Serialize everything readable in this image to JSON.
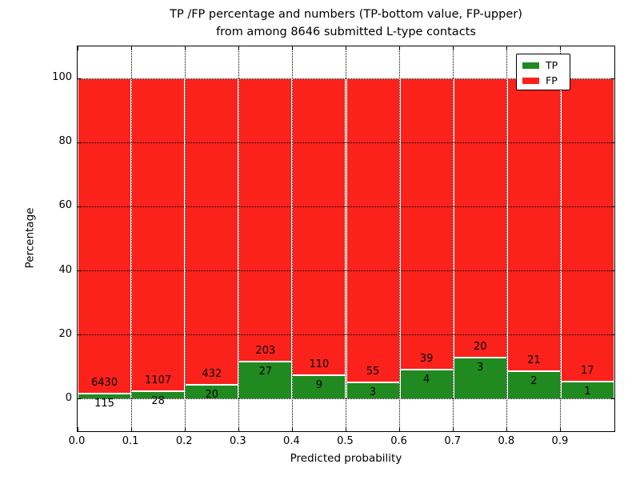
{
  "chart_data": {
    "type": "bar",
    "stacked": true,
    "title_lines": [
      "TP /FP percentage and numbers (TP-bottom value, FP-upper)",
      "from among 8646 submitted L-type contacts"
    ],
    "total_submitted_contacts": 8646,
    "xlabel": "Predicted probability",
    "ylabel": "Percentage",
    "xlim": [
      0.0,
      1.0
    ],
    "ylim": [
      -10,
      110
    ],
    "grid": true,
    "x_tick_values": [
      0.0,
      0.1,
      0.2,
      0.3,
      0.4,
      0.5,
      0.6,
      0.7,
      0.8,
      0.9
    ],
    "x_tick_labels": [
      "0.0",
      "0.1",
      "0.2",
      "0.3",
      "0.4",
      "0.5",
      "0.6",
      "0.7",
      "0.8",
      "0.9"
    ],
    "y_tick_values": [
      0,
      20,
      40,
      60,
      80,
      100
    ],
    "y_tick_labels": [
      "0",
      "20",
      "40",
      "60",
      "80",
      "100"
    ],
    "categories": [
      "0.0-0.1",
      "0.1-0.2",
      "0.2-0.3",
      "0.3-0.4",
      "0.4-0.5",
      "0.5-0.6",
      "0.6-0.7",
      "0.7-0.8",
      "0.8-0.9",
      "0.9-1.0"
    ],
    "bins": [
      {
        "range": "0.0-0.1",
        "tp": 115,
        "fp": 6430
      },
      {
        "range": "0.1-0.2",
        "tp": 28,
        "fp": 1107
      },
      {
        "range": "0.2-0.3",
        "tp": 20,
        "fp": 432
      },
      {
        "range": "0.3-0.4",
        "tp": 27,
        "fp": 203
      },
      {
        "range": "0.4-0.5",
        "tp": 9,
        "fp": 110
      },
      {
        "range": "0.5-0.6",
        "tp": 3,
        "fp": 55
      },
      {
        "range": "0.6-0.7",
        "tp": 4,
        "fp": 39
      },
      {
        "range": "0.7-0.8",
        "tp": 3,
        "fp": 20
      },
      {
        "range": "0.8-0.9",
        "tp": 2,
        "fp": 21
      },
      {
        "range": "0.9-1.0",
        "tp": 1,
        "fp": 17
      }
    ],
    "series": [
      {
        "name": "TP",
        "color": "#208a20",
        "values_pct": [
          1.76,
          2.47,
          4.42,
          11.74,
          7.56,
          5.17,
          9.3,
          13.04,
          8.7,
          5.56
        ]
      },
      {
        "name": "FP",
        "color": "#fb221c",
        "values_pct": [
          98.24,
          97.53,
          95.58,
          88.26,
          92.44,
          94.83,
          90.7,
          86.96,
          91.3,
          94.44
        ]
      }
    ],
    "legend": {
      "position": "upper right",
      "entries": [
        {
          "label": "TP",
          "color": "#208a20"
        },
        {
          "label": "FP",
          "color": "#fb221c"
        }
      ]
    },
    "colors": {
      "tp_green": "#208a20",
      "fp_red": "#fb221c",
      "axis": "#000000",
      "background": "#ffffff",
      "bar_edge": "#ffffff"
    }
  }
}
